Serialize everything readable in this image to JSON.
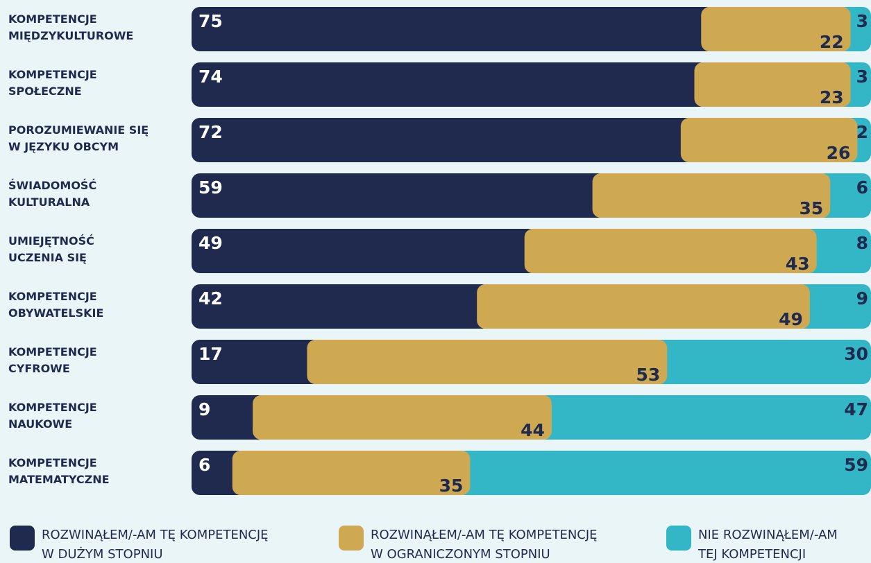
{
  "chart_data": {
    "type": "stacked_bar_horizontal",
    "categories": [
      "KOMPETENCJE\nMIĘDZYKULTUROWE",
      "KOMPETENCJE\nSPOŁECZNE",
      "POROZUMIEWANIE SIĘ\nW JĘZYKU OBCYM",
      "ŚWIADOMOŚĆ\nKULTURALNA",
      "UMIEJĘTNOŚĆ\nUCZENIA SIĘ",
      "KOMPETENCJE\nOBYWATELSKIE",
      "KOMPETENCJE\nCYFROWE",
      "KOMPETENCJE\nNAUKOWE",
      "KOMPETENCJE\nMATEMATYCZNE"
    ],
    "series": [
      {
        "name": "ROZWINĄŁEM/-AM TĘ KOMPETENCJĘ\nW DUŻYM STOPNIU",
        "color": "#1f2a4e",
        "values": [
          75,
          74,
          72,
          59,
          49,
          42,
          17,
          9,
          6
        ]
      },
      {
        "name": "ROZWINĄŁEM/-AM TĘ KOMPETENCJĘ\nW OGRANICZONYM STOPNIU",
        "color": "#cfa952",
        "values": [
          22,
          23,
          26,
          35,
          43,
          49,
          53,
          44,
          35
        ]
      },
      {
        "name": "NIE ROZWINĄŁEM/-AM\nTEJ KOMPETENCJI",
        "color": "#33b6c6",
        "values": [
          3,
          3,
          2,
          6,
          8,
          9,
          30,
          47,
          59
        ]
      }
    ],
    "xlim": [
      0,
      100
    ]
  }
}
